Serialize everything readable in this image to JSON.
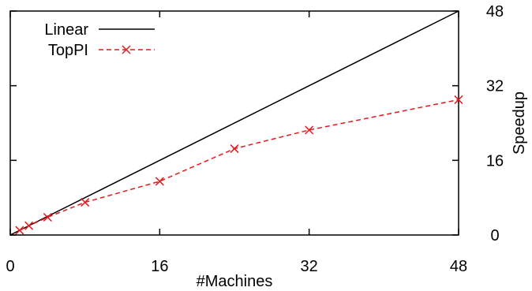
{
  "chart_data": {
    "type": "line",
    "xlabel": "#Machines",
    "ylabel": "Speedup",
    "xlim": [
      0,
      48
    ],
    "ylim": [
      0,
      48
    ],
    "x_ticks": [
      "0",
      "16",
      "32",
      "48"
    ],
    "y_ticks": [
      "0",
      "16",
      "32",
      "48"
    ],
    "y_axis_side": "right",
    "grid": false,
    "legend_position": "top-left",
    "series": [
      {
        "name": "Linear",
        "color": "#000000",
        "style": "solid",
        "marker": "none",
        "x": [
          0,
          48
        ],
        "y": [
          0,
          48
        ]
      },
      {
        "name": "TopPI",
        "color": "#e41a1c",
        "style": "dashed",
        "marker": "x",
        "x": [
          1,
          2,
          4,
          8,
          16,
          24,
          32,
          48
        ],
        "y": [
          1,
          2,
          3.8,
          7,
          11.5,
          18.5,
          22.5,
          29
        ]
      }
    ]
  }
}
